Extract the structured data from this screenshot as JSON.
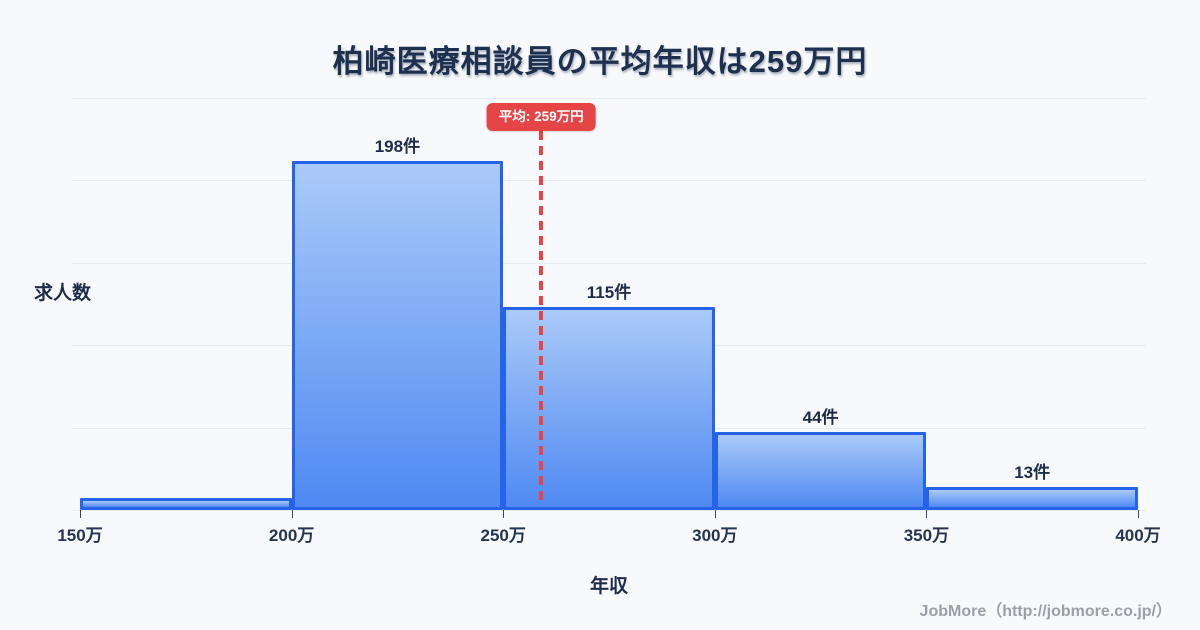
{
  "title": "柏崎医療相談員の平均年収は259万円",
  "y_axis_label": "求人数",
  "x_axis_label": "年収",
  "footer": "JobMore（http://jobmore.co.jp/）",
  "average_badge_label": "平均: 259万円",
  "colors": {
    "background": "#f7f9fc",
    "title_text": "#1e3050",
    "bar_border": "#2563e8",
    "bar_fill_top": "#aacaf8",
    "bar_fill_bottom": "#4f89f2",
    "average_red": "#e64545",
    "gridline": "#e7ebf3",
    "footer_text": "#9b9fa8"
  },
  "chart_data": {
    "type": "bar",
    "title": "柏崎医療相談員の平均年収は259万円",
    "xlabel": "年収",
    "ylabel": "求人数",
    "bin_edges_man_yen": [
      150,
      200,
      250,
      300,
      350,
      400
    ],
    "x_tick_labels": [
      "150万",
      "200万",
      "250万",
      "300万",
      "350万",
      "400万"
    ],
    "values": [
      7,
      198,
      115,
      44,
      13
    ],
    "bar_labels": [
      "",
      "198件",
      "115件",
      "44件",
      "13件"
    ],
    "average": {
      "value_man_yen": 259,
      "label": "平均: 259万円"
    },
    "xlim": [
      150,
      400
    ],
    "ylim": [
      0,
      234
    ],
    "grid": "horizontal",
    "gridline_count": 6,
    "legend": "none"
  }
}
